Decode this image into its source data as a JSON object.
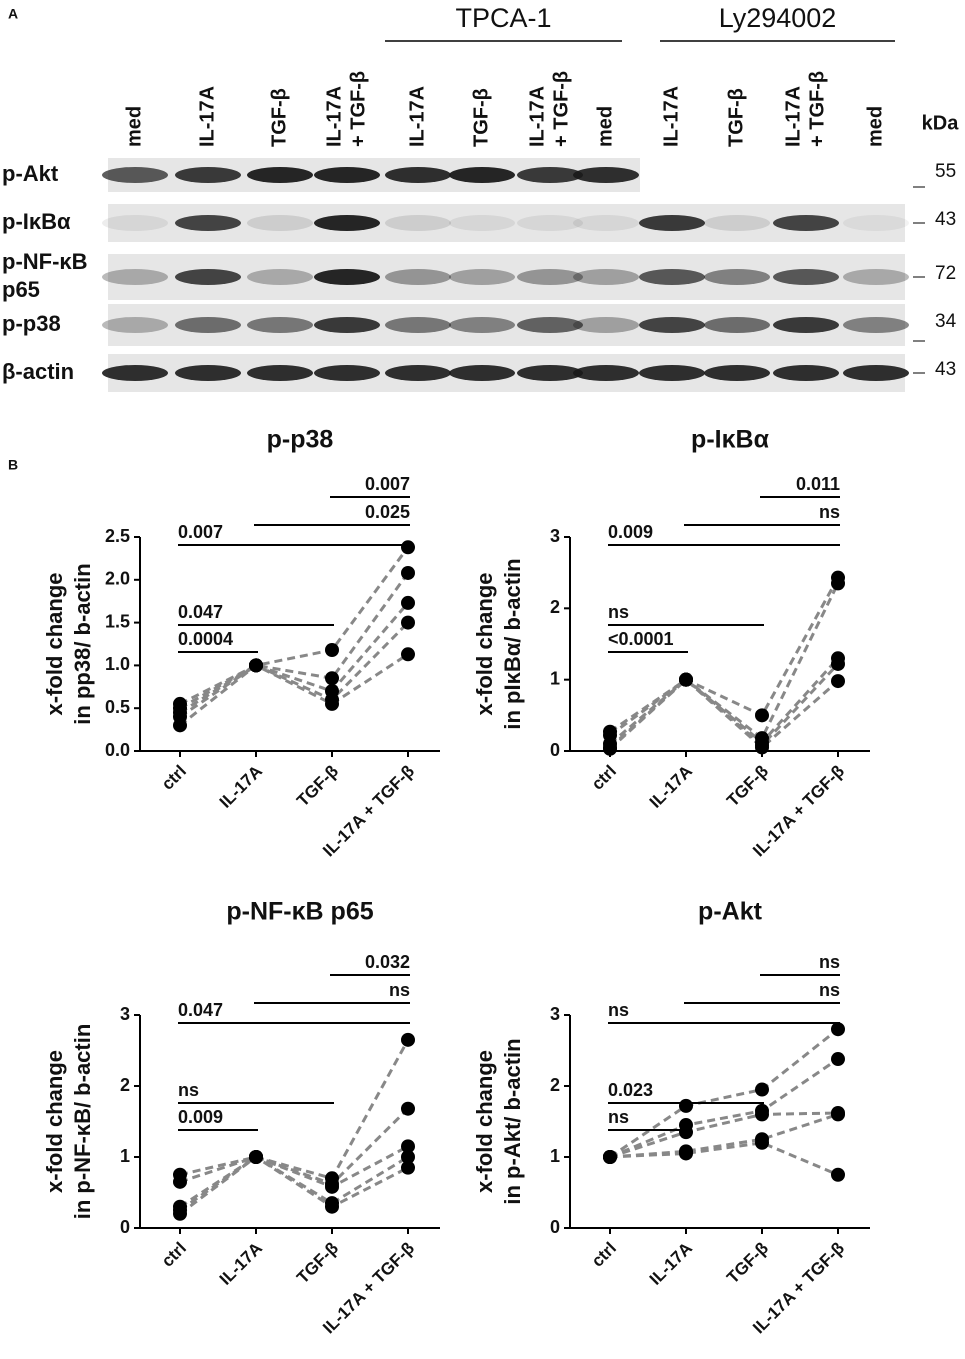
{
  "panel_a": {
    "label": "A",
    "groups": [
      "TPCA-1",
      "Ly294002"
    ],
    "lanes": [
      [
        "med"
      ],
      [
        "IL-17A"
      ],
      [
        "TGF-β"
      ],
      [
        "IL-17A",
        "+ TGF-β"
      ],
      [
        "IL-17A"
      ],
      [
        "TGF-β"
      ],
      [
        "IL-17A",
        "+ TGF-β"
      ],
      [
        "med"
      ],
      [
        "IL-17A"
      ],
      [
        "TGF-β"
      ],
      [
        "IL-17A",
        "+ TGF-β"
      ],
      [
        "med"
      ]
    ],
    "kda_label": "kDa",
    "rows": [
      {
        "label": [
          "p-Akt"
        ],
        "kda": 55
      },
      {
        "label": [
          "p-IκBα"
        ],
        "kda": 43
      },
      {
        "label": [
          "p-NF-κB",
          "p65"
        ],
        "kda": 72
      },
      {
        "label": [
          "p-p38"
        ],
        "kda": 34
      },
      {
        "label": [
          "β-actin"
        ],
        "kda": 43
      }
    ]
  },
  "panel_b_label": "B",
  "chart_data": [
    {
      "type": "line",
      "title": "p-p38",
      "ylabel": [
        "x-fold change",
        "in pp38/ b-actin"
      ],
      "categories": [
        "ctrl",
        "IL-17A",
        "TGF-β",
        "IL-17A + TGF-β"
      ],
      "ylim": [
        0,
        2.5
      ],
      "yticks": [
        {
          "value": 0,
          "label": "0.0"
        },
        0.5,
        {
          "value": 1,
          "label": "1.0"
        },
        1.5,
        {
          "value": 2,
          "label": "2.0"
        },
        2.5
      ],
      "line_color": "#888888",
      "line_style": "dashed",
      "marker_color": "#000000",
      "series": [
        {
          "values": [
            0.55,
            1,
            1.18,
            2.38
          ]
        },
        {
          "values": [
            0.5,
            1,
            0.85,
            2.08
          ]
        },
        {
          "values": [
            0.45,
            1,
            0.7,
            1.73
          ]
        },
        {
          "values": [
            0.4,
            1,
            0.6,
            1.5
          ]
        },
        {
          "values": [
            0.3,
            1,
            0.55,
            1.13
          ]
        }
      ],
      "brackets": [
        {
          "from": "ctrl",
          "to": "IL-17A",
          "label": "0.0004"
        },
        {
          "from": "ctrl",
          "to": "TGF-β",
          "label": "0.047"
        },
        {
          "from": "ctrl",
          "to": "IL-17A + TGF-β",
          "label": "0.007"
        },
        {
          "from": "IL-17A",
          "to": "IL-17A + TGF-β",
          "label": "0.025"
        },
        {
          "from": "TGF-β",
          "to": "IL-17A + TGF-β",
          "label": "0.007"
        }
      ]
    },
    {
      "type": "line",
      "title": "p-IκBα",
      "ylabel": [
        "x-fold change",
        "in pIκBα/ b-actin"
      ],
      "categories": [
        "ctrl",
        "IL-17A",
        "TGF-β",
        "IL-17A + TGF-β"
      ],
      "ylim": [
        0,
        3
      ],
      "yticks": [
        0,
        1,
        2,
        3
      ],
      "line_color": "#888888",
      "line_style": "dashed",
      "marker_color": "#000000",
      "series": [
        {
          "values": [
            0.27,
            1,
            0.5,
            2.43
          ]
        },
        {
          "values": [
            0.22,
            1,
            0.18,
            2.35
          ]
        },
        {
          "values": [
            0.1,
            1,
            0.12,
            1.3
          ]
        },
        {
          "values": [
            0.05,
            1,
            0.08,
            1.22
          ]
        },
        {
          "values": [
            0.03,
            1,
            0.05,
            0.98
          ]
        }
      ],
      "brackets": [
        {
          "from": "ctrl",
          "to": "IL-17A",
          "label": "<0.0001"
        },
        {
          "from": "ctrl",
          "to": "TGF-β",
          "label": "ns"
        },
        {
          "from": "ctrl",
          "to": "IL-17A + TGF-β",
          "label": "0.009"
        },
        {
          "from": "IL-17A",
          "to": "IL-17A + TGF-β",
          "label": "ns"
        },
        {
          "from": "TGF-β",
          "to": "IL-17A + TGF-β",
          "label": "0.011"
        }
      ]
    },
    {
      "type": "line",
      "title": "p-NF-κB p65",
      "ylabel": [
        "x-fold change",
        "in p-NF-κB/ b-actin"
      ],
      "categories": [
        "ctrl",
        "IL-17A",
        "TGF-β",
        "IL-17A + TGF-β"
      ],
      "ylim": [
        0,
        3
      ],
      "yticks": [
        0,
        1,
        2,
        3
      ],
      "line_color": "#888888",
      "line_style": "dashed",
      "marker_color": "#000000",
      "series": [
        {
          "values": [
            0.75,
            1,
            0.7,
            2.65
          ]
        },
        {
          "values": [
            0.65,
            1,
            0.62,
            1.68
          ]
        },
        {
          "values": [
            0.3,
            1,
            0.58,
            1.15
          ]
        },
        {
          "values": [
            0.25,
            1,
            0.35,
            1.0
          ]
        },
        {
          "values": [
            0.2,
            1,
            0.3,
            0.85
          ]
        }
      ],
      "brackets": [
        {
          "from": "ctrl",
          "to": "IL-17A",
          "label": "0.009"
        },
        {
          "from": "ctrl",
          "to": "TGF-β",
          "label": "ns"
        },
        {
          "from": "ctrl",
          "to": "IL-17A + TGF-β",
          "label": "0.047"
        },
        {
          "from": "IL-17A",
          "to": "IL-17A + TGF-β",
          "label": "ns"
        },
        {
          "from": "TGF-β",
          "to": "IL-17A + TGF-β",
          "label": "0.032"
        }
      ]
    },
    {
      "type": "line",
      "title": "p-Akt",
      "ylabel": [
        "x-fold change",
        "in p-Akt/ b-actin"
      ],
      "categories": [
        "ctrl",
        "IL-17A",
        "TGF-β",
        "IL-17A + TGF-β"
      ],
      "ylim": [
        0,
        3
      ],
      "yticks": [
        0,
        1,
        2,
        3
      ],
      "line_color": "#888888",
      "line_style": "dashed",
      "marker_color": "#000000",
      "series": [
        {
          "values": [
            1,
            1.72,
            1.95,
            2.8
          ]
        },
        {
          "values": [
            1,
            1.45,
            1.65,
            2.38
          ]
        },
        {
          "values": [
            1,
            1.35,
            1.6,
            1.62
          ]
        },
        {
          "values": [
            1,
            1.08,
            1.25,
            1.6
          ]
        },
        {
          "values": [
            1,
            1.05,
            1.2,
            0.75
          ]
        }
      ],
      "brackets": [
        {
          "from": "ctrl",
          "to": "IL-17A",
          "label": "ns"
        },
        {
          "from": "ctrl",
          "to": "TGF-β",
          "label": "0.023"
        },
        {
          "from": "ctrl",
          "to": "IL-17A + TGF-β",
          "label": "ns"
        },
        {
          "from": "IL-17A",
          "to": "IL-17A + TGF-β",
          "label": "ns"
        },
        {
          "from": "TGF-β",
          "to": "IL-17A + TGF-β",
          "label": "ns"
        }
      ]
    }
  ]
}
